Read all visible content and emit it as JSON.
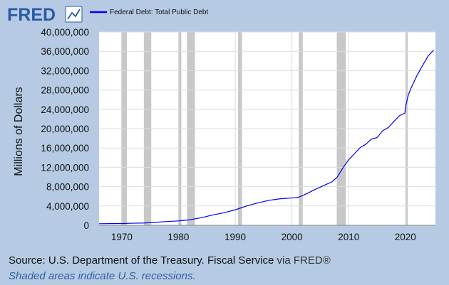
{
  "header": {
    "logo_text": "FRED",
    "legend_label": "Federal Debt: Total Public Debt"
  },
  "footer": {
    "source_text": "Source: U.S. Department of the Treasury. Fiscal Service",
    "via_text": "via FRED®",
    "recession_note": "Shaded areas indicate U.S. recessions."
  },
  "colors": {
    "series_line": "#0000ee",
    "background": "#b6cbe3",
    "recession_shade": "#c8c8c8",
    "logo_blue": "#2a5aa5"
  },
  "chart_data": {
    "type": "line",
    "title": "",
    "ylabel": "Millions of Dollars",
    "xlabel": "",
    "xlim": [
      1966,
      2025.3
    ],
    "ylim": [
      0,
      40000000
    ],
    "x_ticks": [
      1970,
      1980,
      1990,
      2000,
      2010,
      2020
    ],
    "y_ticks": [
      0,
      4000000,
      8000000,
      12000000,
      16000000,
      20000000,
      24000000,
      28000000,
      32000000,
      36000000,
      40000000
    ],
    "y_tick_labels": [
      "0",
      "4,000,000",
      "8,000,000",
      "12,000,000",
      "16,000,000",
      "20,000,000",
      "24,000,000",
      "28,000,000",
      "32,000,000",
      "36,000,000",
      "40,000,000"
    ],
    "grid": true,
    "legend_position": "top-left",
    "recessions": [
      [
        1969.9,
        1970.9
      ],
      [
        1973.9,
        1975.2
      ],
      [
        1980.0,
        1980.5
      ],
      [
        1981.5,
        1982.9
      ],
      [
        1990.5,
        1991.2
      ],
      [
        2001.2,
        2001.9
      ],
      [
        2007.9,
        2009.5
      ],
      [
        2020.1,
        2020.4
      ]
    ],
    "series": [
      {
        "name": "Federal Debt: Total Public Debt",
        "x": [
          1966,
          1968,
          1970,
          1972,
          1974,
          1976,
          1978,
          1980,
          1982,
          1984,
          1986,
          1988,
          1990,
          1992,
          1994,
          1996,
          1998,
          2000,
          2001,
          2002,
          2003,
          2004,
          2005,
          2006,
          2007,
          2008,
          2009,
          2010,
          2011,
          2012,
          2013,
          2014,
          2015,
          2016,
          2017,
          2018,
          2019,
          2019.9,
          2020.1,
          2020.5,
          2021,
          2022,
          2023,
          2024,
          2024.6,
          2025
        ],
        "y": [
          320000,
          345000,
          370000,
          430000,
          480000,
          620000,
          780000,
          910000,
          1140000,
          1570000,
          2120000,
          2600000,
          3200000,
          4000000,
          4640000,
          5180000,
          5500000,
          5650000,
          5750000,
          6200000,
          6780000,
          7380000,
          7900000,
          8450000,
          8950000,
          9990000,
          11900000,
          13560000,
          14780000,
          16060000,
          16740000,
          17820000,
          18150000,
          19570000,
          20240000,
          21520000,
          22720000,
          23200000,
          24900000,
          26900000,
          28400000,
          30900000,
          33000000,
          35000000,
          35800000,
          36200000
        ]
      }
    ]
  }
}
